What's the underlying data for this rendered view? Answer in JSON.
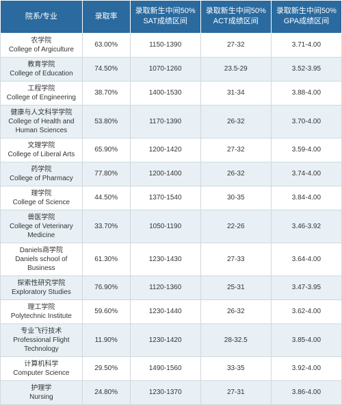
{
  "headers": {
    "col0": "院系/专业",
    "col1": "录取率",
    "col2": "录取新生中间50%\nSAT成绩区间",
    "col3": "录取新生中间50%\nACT成绩区间",
    "col4": "录取新生中间50%\nGPA成绩区间"
  },
  "rows": [
    {
      "dept": "农学院\nCollege of Argiculture",
      "rate": "63.00%",
      "sat": "1150-1390",
      "act": "27-32",
      "gpa": "3.71-4.00"
    },
    {
      "dept": "教育学院\nCollege of Education",
      "rate": "74.50%",
      "sat": "1070-1260",
      "act": "23.5-29",
      "gpa": "3.52-3.95"
    },
    {
      "dept": "工程学院\nCollege of Engineering",
      "rate": "38.70%",
      "sat": "1400-1530",
      "act": "31-34",
      "gpa": "3.88-4.00"
    },
    {
      "dept": "健康与人文科学学院\nCollege of Health and\nHuman Sciences",
      "rate": "53.80%",
      "sat": "1170-1390",
      "act": "26-32",
      "gpa": "3.70-4.00"
    },
    {
      "dept": "文理学院\nCollege of Liberal Arts",
      "rate": "65.90%",
      "sat": "1200-1420",
      "act": "27-32",
      "gpa": "3.59-4.00"
    },
    {
      "dept": "药学院\nCollege of Pharmacy",
      "rate": "77.80%",
      "sat": "1200-1400",
      "act": "26-32",
      "gpa": "3.74-4.00"
    },
    {
      "dept": "理学院\nCollege of Science",
      "rate": "44.50%",
      "sat": "1370-1540",
      "act": "30-35",
      "gpa": "3.84-4.00"
    },
    {
      "dept": "兽医学院\nCollege of Veterinary\nMedicine",
      "rate": "33.70%",
      "sat": "1050-1190",
      "act": "22-26",
      "gpa": "3.46-3.92"
    },
    {
      "dept": "Daniels商学院\nDaniels school of\nBusiness",
      "rate": "61.30%",
      "sat": "1230-1430",
      "act": "27-33",
      "gpa": "3.64-4.00"
    },
    {
      "dept": "探索性研究学院\nExploratory Studies",
      "rate": "76.90%",
      "sat": "1120-1360",
      "act": "25-31",
      "gpa": "3.47-3.95"
    },
    {
      "dept": "理工学院\nPolytechnic Institute",
      "rate": "59.60%",
      "sat": "1230-1440",
      "act": "26-32",
      "gpa": "3.62-4.00"
    },
    {
      "dept": "专业飞行技术\nProfessional Flight\nTechnology",
      "rate": "11.90%",
      "sat": "1230-1420",
      "act": "28-32.5",
      "gpa": "3.85-4.00"
    },
    {
      "dept": "计算机科学\nComputer Science",
      "rate": "29.50%",
      "sat": "1490-1560",
      "act": "33-35",
      "gpa": "3.92-4.00"
    },
    {
      "dept": "护理学\nNursing",
      "rate": "24.80%",
      "sat": "1230-1370",
      "act": "27-31",
      "gpa": "3.86-4.00"
    }
  ],
  "style": {
    "header_bg": "#2a6a9e",
    "header_color": "#ffffff",
    "row_even_bg": "#e8f0f5",
    "row_odd_bg": "#ffffff",
    "border_color": "#cfd8dc",
    "font_family": "Microsoft YaHei, Arial, sans-serif"
  }
}
